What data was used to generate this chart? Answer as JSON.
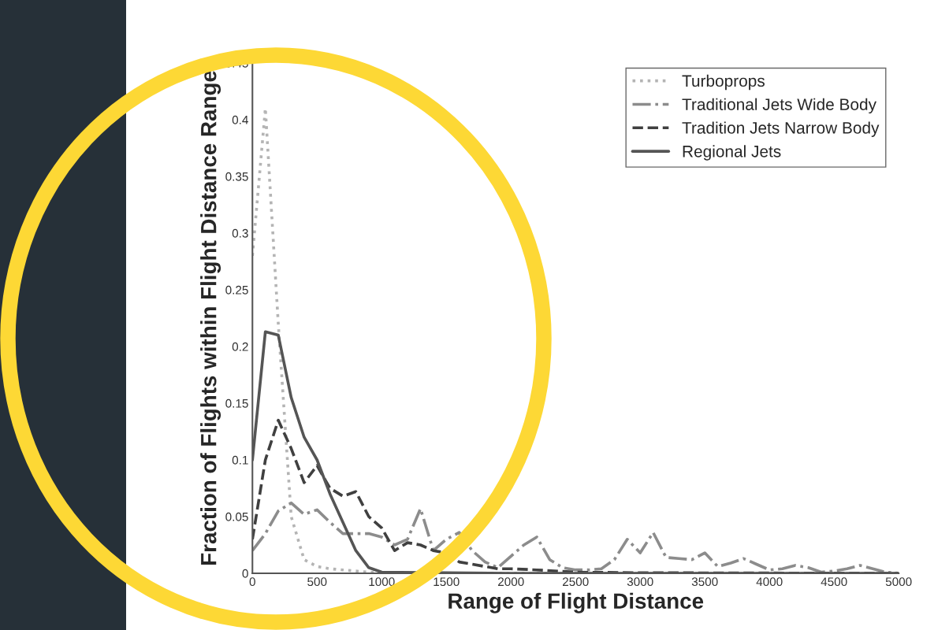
{
  "chart_data": {
    "type": "line",
    "xlabel": "Range of Flight Distance",
    "ylabel": "Fraction of Flights within Flight Distance Range",
    "x": [
      0,
      100,
      200,
      300,
      400,
      500,
      600,
      700,
      800,
      900,
      1000,
      1100,
      1200,
      1300,
      1400,
      1500,
      1600,
      1700,
      1800,
      1900,
      2000,
      2100,
      2200,
      2300,
      2400,
      2500,
      2600,
      2700,
      2800,
      2900,
      3000,
      3100,
      3200,
      3300,
      3400,
      3500,
      3600,
      3700,
      3800,
      3900,
      4000,
      4100,
      4200,
      4300,
      4400,
      4500,
      4600,
      4700,
      4800,
      4900,
      5000
    ],
    "series": [
      {
        "name": "Turboprops",
        "color": "#b4b4b4",
        "line_style": "dotted",
        "x": [
          0,
          100,
          200,
          300,
          400,
          500,
          600,
          700,
          800,
          900,
          1000,
          1200,
          1500,
          2000,
          5000
        ],
        "values": [
          0.28,
          0.41,
          0.22,
          0.05,
          0.012,
          0.006,
          0.004,
          0.003,
          0.002,
          0.001,
          0.0005,
          0,
          0,
          0,
          0
        ]
      },
      {
        "name": "Traditional Jets Wide Body",
        "color": "#8c8c8c",
        "line_style": "dashdot",
        "values": [
          0.02,
          0.035,
          0.055,
          0.062,
          0.052,
          0.056,
          0.045,
          0.035,
          0.035,
          0.035,
          0.032,
          0.025,
          0.03,
          0.057,
          0.02,
          0.03,
          0.036,
          0.02,
          0.01,
          0.005,
          0.015,
          0.025,
          0.032,
          0.012,
          0.005,
          0.003,
          0.003,
          0.004,
          0.012,
          0.03,
          0.018,
          0.036,
          0.014,
          0.013,
          0.012,
          0.018,
          0.006,
          0.009,
          0.013,
          0.008,
          0.003,
          0.004,
          0.007,
          0.005,
          0.001,
          0.002,
          0.004,
          0.007,
          0.004,
          0.001,
          0
        ]
      },
      {
        "name": "Tradition Jets Narrow Body",
        "color": "#404040",
        "line_style": "dashed",
        "x": [
          0,
          100,
          200,
          300,
          400,
          500,
          600,
          700,
          800,
          900,
          1000,
          1100,
          1200,
          1300,
          1400,
          1500,
          1600,
          1700,
          1800,
          1900,
          2000,
          2200,
          2500,
          3000,
          5000
        ],
        "values": [
          0.03,
          0.1,
          0.135,
          0.11,
          0.08,
          0.095,
          0.075,
          0.068,
          0.072,
          0.05,
          0.04,
          0.02,
          0.027,
          0.025,
          0.02,
          0.018,
          0.01,
          0.008,
          0.006,
          0.004,
          0.004,
          0.003,
          0.001,
          0.0005,
          0
        ]
      },
      {
        "name": "Regional Jets",
        "color": "#555555",
        "line_style": "solid",
        "x": [
          0,
          100,
          200,
          300,
          400,
          500,
          600,
          700,
          800,
          900,
          1000,
          1500,
          2000,
          5000
        ],
        "values": [
          0.1,
          0.213,
          0.21,
          0.155,
          0.12,
          0.1,
          0.07,
          0.045,
          0.02,
          0.005,
          0.001,
          0.0005,
          0,
          0
        ]
      }
    ],
    "xlim": [
      0,
      5000
    ],
    "xticks": [
      0,
      500,
      1000,
      1500,
      2000,
      2500,
      3000,
      3500,
      4000,
      4500,
      5000
    ],
    "ylim": [
      0,
      0.45
    ],
    "yticks": [
      0,
      0.05,
      0.1,
      0.15,
      0.2,
      0.25,
      0.3,
      0.35,
      0.4,
      0.45
    ],
    "grid": false,
    "legend": "top right",
    "marker": "none"
  }
}
